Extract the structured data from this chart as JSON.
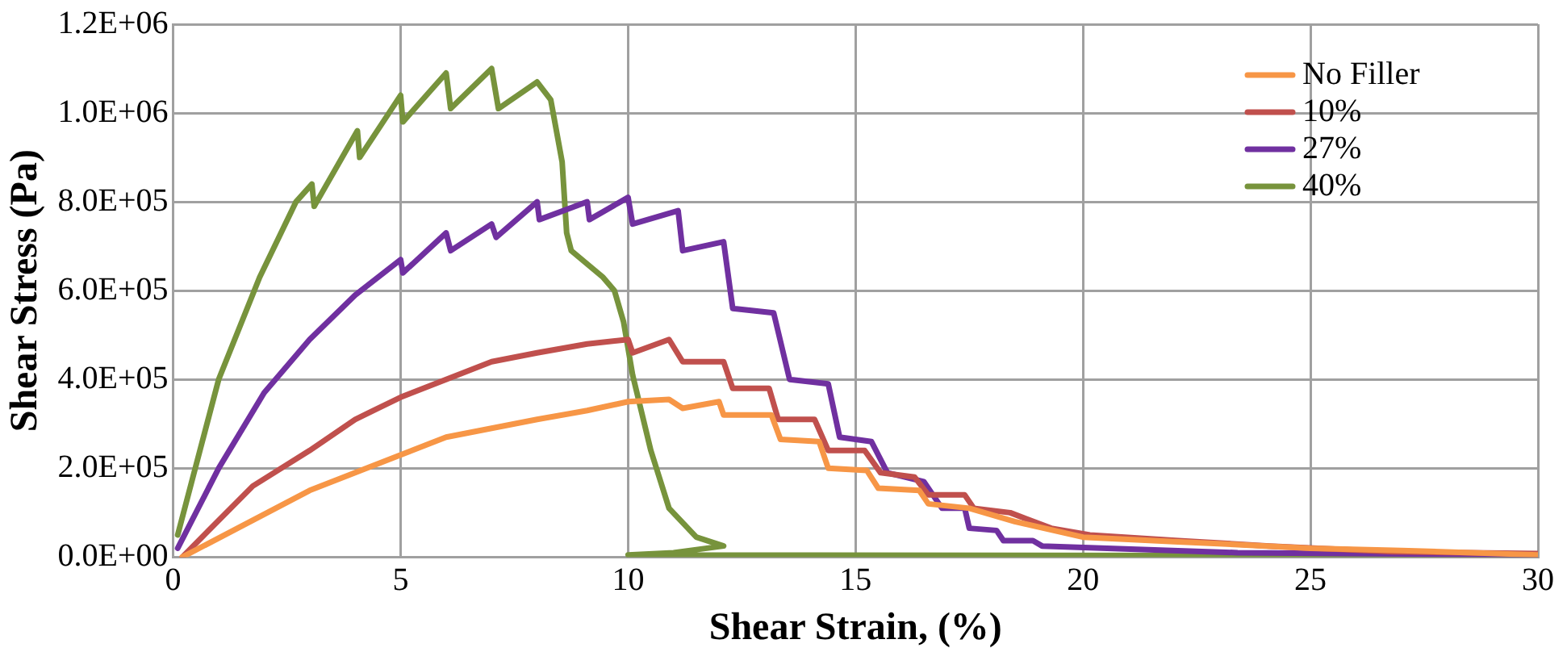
{
  "chart_data": {
    "type": "line",
    "xlabel": "Shear Strain, (%)",
    "ylabel": "Shear Stress (Pa)",
    "xlim": [
      0,
      30
    ],
    "xticks": [
      0,
      5,
      10,
      15,
      20,
      25,
      30
    ],
    "ylim": [
      0,
      1200000
    ],
    "yticks": [
      {
        "value": 0,
        "label": "0.0E+00"
      },
      {
        "value": 200000,
        "label": "2.0E+05"
      },
      {
        "value": 400000,
        "label": "4.0E+05"
      },
      {
        "value": 600000,
        "label": "6.0E+05"
      },
      {
        "value": 800000,
        "label": "8.0E+05"
      },
      {
        "value": 1000000,
        "label": "1.0E+06"
      },
      {
        "value": 1200000,
        "label": "1.2E+06"
      }
    ],
    "grid": true,
    "legend": "top right",
    "marker": "none",
    "line_style": "solid",
    "series": [
      {
        "name": "No Filler",
        "color": "#f79646",
        "x": [
          0.2,
          3.0,
          4.0,
          5.0,
          6.0,
          7.0,
          8.0,
          9.1,
          10.0,
          10.9,
          11.2,
          12.0,
          12.1,
          13.15,
          13.35,
          14.2,
          14.4,
          15.25,
          15.5,
          16.4,
          16.6,
          17.5,
          18.5,
          20.0,
          22.0,
          25.0,
          27.0,
          30.0
        ],
        "values": [
          0,
          150000,
          190000,
          230000,
          270000,
          290000,
          310000,
          330000,
          350000,
          355000,
          335000,
          350000,
          320000,
          320000,
          265000,
          260000,
          200000,
          195000,
          155000,
          150000,
          120000,
          110000,
          80000,
          45000,
          35000,
          20000,
          15000,
          5000
        ]
      },
      {
        "name": "10%",
        "color": "#c0504d",
        "x": [
          0.2,
          1.75,
          3.0,
          4.0,
          5.0,
          6.0,
          7.0,
          8.0,
          9.1,
          10.0,
          10.1,
          10.9,
          11.2,
          12.1,
          12.3,
          13.1,
          13.3,
          14.1,
          14.4,
          15.2,
          15.55,
          16.3,
          16.6,
          17.4,
          17.6,
          18.4,
          19.3,
          20.15,
          22.1,
          24.1,
          26.8,
          30.0
        ],
        "values": [
          0,
          160000,
          240000,
          310000,
          360000,
          400000,
          440000,
          460000,
          480000,
          490000,
          460000,
          490000,
          440000,
          440000,
          380000,
          380000,
          310000,
          310000,
          240000,
          240000,
          190000,
          180000,
          140000,
          140000,
          110000,
          100000,
          65000,
          50000,
          37000,
          25000,
          12000,
          8000
        ]
      },
      {
        "name": "27%",
        "color": "#7030a0",
        "x": [
          0.1,
          1.0,
          2.0,
          3.0,
          4.0,
          5.0,
          5.05,
          6.0,
          6.1,
          7.0,
          7.1,
          8.0,
          8.05,
          9.1,
          9.15,
          10.0,
          10.1,
          11.1,
          11.2,
          12.1,
          12.3,
          13.2,
          13.55,
          14.4,
          14.65,
          15.35,
          15.7,
          16.5,
          16.9,
          17.4,
          17.5,
          18.1,
          18.25,
          18.9,
          19.1,
          23.4,
          30.0
        ],
        "values": [
          20000,
          200000,
          370000,
          490000,
          590000,
          670000,
          640000,
          730000,
          690000,
          750000,
          720000,
          800000,
          760000,
          800000,
          760000,
          810000,
          750000,
          780000,
          690000,
          710000,
          560000,
          550000,
          400000,
          390000,
          270000,
          260000,
          190000,
          170000,
          110000,
          110000,
          65000,
          60000,
          37000,
          37000,
          25000,
          10000,
          5000
        ]
      },
      {
        "name": "40%",
        "color": "#77933c",
        "x": [
          0.1,
          1.0,
          1.9,
          2.7,
          3.05,
          3.1,
          4.05,
          4.1,
          5.0,
          5.05,
          6.0,
          6.1,
          7.0,
          7.15,
          8.0,
          8.3,
          8.55,
          8.65,
          8.75,
          9.45,
          9.7,
          9.9,
          10.1,
          10.5,
          10.9,
          11.5,
          12.1,
          11.0,
          10.0,
          30.0
        ],
        "values": [
          50000,
          400000,
          630000,
          800000,
          840000,
          790000,
          960000,
          900000,
          1040000,
          980000,
          1090000,
          1010000,
          1100000,
          1010000,
          1070000,
          1030000,
          890000,
          730000,
          690000,
          630000,
          600000,
          530000,
          410000,
          240000,
          110000,
          45000,
          25000,
          10000,
          5000,
          3000
        ]
      }
    ]
  }
}
